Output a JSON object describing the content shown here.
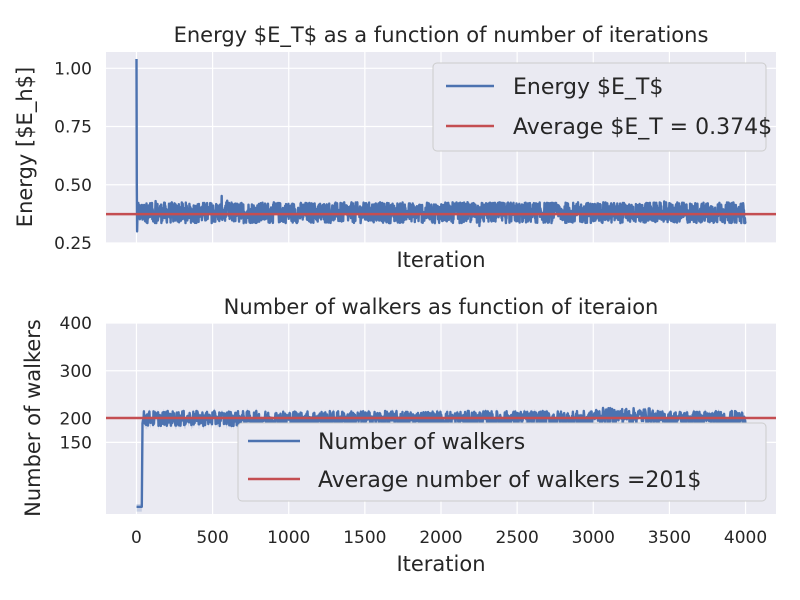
{
  "chart_data": [
    {
      "type": "line",
      "title": "Energy $E_T$ as a function of number of iterations",
      "xlabel": "Iteration",
      "ylabel": "Energy [$E_h$]",
      "xlim": [
        -200,
        4200
      ],
      "ylim": [
        0.25,
        1.07
      ],
      "x_ticks": [
        0,
        500,
        1000,
        1500,
        2000,
        2500,
        3000,
        3500,
        4000
      ],
      "x_tick_labels_visible": false,
      "y_ticks": [
        0.25,
        0.5,
        0.75,
        1.0
      ],
      "y_tick_labels": [
        "0.25",
        "0.50",
        "0.75",
        "1.00"
      ],
      "grid": true,
      "legend": "top-right",
      "series": [
        {
          "name": "Energy $E_T$",
          "color": "#4c72b0",
          "x_range": [
            0,
            4000
          ],
          "initial_points": [
            [
              0,
              1.04
            ],
            [
              2,
              0.5
            ],
            [
              4,
              0.3
            ],
            [
              8,
              0.41
            ]
          ],
          "steady_mean": 0.38,
          "steady_min": 0.29,
          "steady_max": 0.47
        },
        {
          "name": "Average $E_T = 0.374$",
          "color": "#c44e52",
          "kind": "hline",
          "y": 0.374
        }
      ]
    },
    {
      "type": "line",
      "title": "Number of walkers as function of iteraion",
      "xlabel": "Iteration",
      "ylabel": "Number of walkers",
      "xlim": [
        -200,
        4200
      ],
      "ylim": [
        0,
        400
      ],
      "x_ticks": [
        0,
        500,
        1000,
        1500,
        2000,
        2500,
        3000,
        3500,
        4000
      ],
      "x_tick_labels": [
        "0",
        "500",
        "1000",
        "1500",
        "2000",
        "2500",
        "3000",
        "3500",
        "4000"
      ],
      "y_ticks": [
        150,
        200,
        300,
        400
      ],
      "y_tick_labels": [
        "150",
        "200",
        "300",
        "400"
      ],
      "grid": true,
      "legend": "lower-right",
      "series": [
        {
          "name": "Number of walkers",
          "color": "#4c72b0",
          "x_range": [
            0,
            4000
          ],
          "initial_value": 15,
          "ramp_end_x": 40,
          "steady_mean": 200,
          "steady_min": 180,
          "steady_max": 230
        },
        {
          "name": "Average number of walkers =201$",
          "color": "#c44e52",
          "kind": "hline",
          "y": 201
        }
      ]
    }
  ]
}
